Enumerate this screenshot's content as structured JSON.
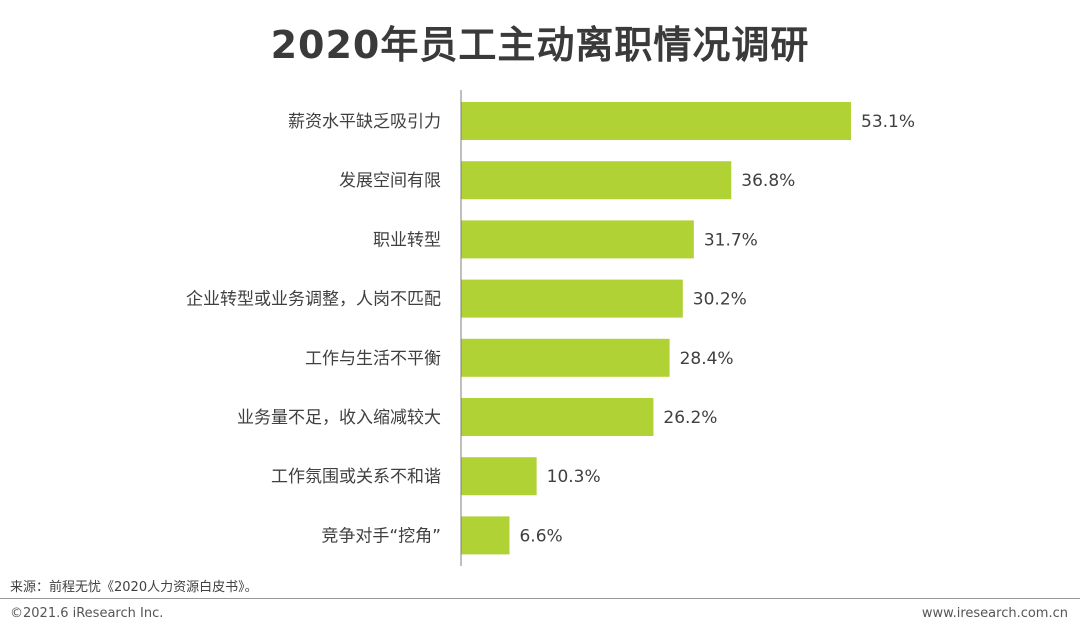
{
  "chart_data": {
    "type": "bar",
    "orientation": "horizontal",
    "title": "2020年员工主动离职情况调研",
    "categories": [
      "薪资水平缺乏吸引力",
      "发展空间有限",
      "职业转型",
      "企业转型或业务调整，人岗不匹配",
      "工作与生活不平衡",
      "业务量不足，收入缩减较大",
      "工作氛围或关系不和谐",
      "竞争对手“挖角”"
    ],
    "values": [
      53.1,
      36.8,
      31.7,
      30.2,
      28.4,
      26.2,
      10.3,
      6.6
    ],
    "value_labels": [
      "53.1%",
      "36.8%",
      "31.7%",
      "30.2%",
      "28.4%",
      "26.2%",
      "10.3%",
      "6.6%"
    ],
    "xlim": [
      0,
      60
    ],
    "bar_color": "#b0d235",
    "grid": false,
    "legend": "none"
  },
  "footer": {
    "source": "来源：前程无忧《2020人力资源白皮书》。",
    "copyright": "©2021.6 iResearch Inc.",
    "website": "www.iresearch.com.cn"
  }
}
